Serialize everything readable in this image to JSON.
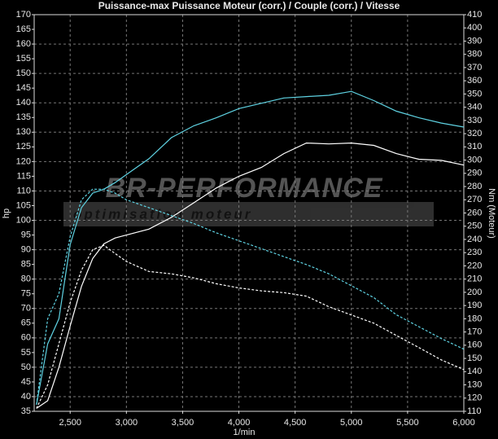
{
  "chart_data": {
    "type": "line",
    "title": "Puissance-max Puissance Moteur (corr.) / Couple (corr.) / Vitesse",
    "xlabel": "1/min",
    "ylabel": "hp",
    "y2label": "Nm (Moteur)",
    "x": [
      2200,
      2300,
      2400,
      2500,
      2600,
      2700,
      2800,
      2900,
      3000,
      3200,
      3400,
      3600,
      3800,
      4000,
      4200,
      4400,
      4600,
      4800,
      5000,
      5200,
      5400,
      5600,
      5800,
      6000
    ],
    "series": [
      {
        "color": "#ffffff",
        "line_style": "solid",
        "axis": "y",
        "values": [
          36,
          38.6,
          50,
          64,
          77.5,
          87,
          92,
          94,
          95,
          97,
          101,
          106,
          111,
          115,
          118,
          122.7,
          126.3,
          126,
          126.3,
          125.5,
          122.7,
          120.8,
          120.4,
          118.8
        ]
      },
      {
        "color": "#5fd3e3",
        "line_style": "solid",
        "axis": "y2",
        "values": [
          115,
          161,
          180,
          236,
          264,
          275,
          278,
          283,
          289,
          301,
          317,
          326,
          332,
          339,
          343,
          347,
          348,
          349,
          352,
          345,
          337,
          332,
          328,
          325
        ]
      },
      {
        "color": "#ffffff",
        "line_style": "dashed",
        "axis": "y",
        "values": [
          36,
          44,
          58,
          72,
          83,
          90,
          91.5,
          88.7,
          86,
          82.6,
          81.8,
          80.4,
          78.4,
          77,
          76,
          75.4,
          74.2,
          70.6,
          67.8,
          65,
          60.8,
          56.7,
          52.5,
          49.2
        ]
      },
      {
        "color": "#5fd3e3",
        "line_style": "dashed",
        "axis": "y2",
        "values": [
          115,
          180,
          199,
          242,
          270,
          278,
          278,
          275,
          270,
          264,
          258,
          252,
          245,
          239,
          233,
          227,
          221,
          214,
          205,
          196,
          183,
          174,
          165,
          157
        ]
      }
    ],
    "xlim": [
      2180,
      6000
    ],
    "xticks": [
      {
        "value": 2500,
        "label": "2,500"
      },
      {
        "value": 3000,
        "label": "3,000"
      },
      {
        "value": 3500,
        "label": "3,500"
      },
      {
        "value": 4000,
        "label": "4,000"
      },
      {
        "value": 4500,
        "label": "4,500"
      },
      {
        "value": 5000,
        "label": "5,000"
      },
      {
        "value": 5500,
        "label": "5,500"
      },
      {
        "value": 6000,
        "label": "6,000"
      }
    ],
    "ylim": [
      35,
      170
    ],
    "yticks": [
      35,
      40,
      45,
      50,
      55,
      60,
      65,
      70,
      75,
      80,
      85,
      90,
      95,
      100,
      105,
      110,
      115,
      120,
      125,
      130,
      135,
      140,
      145,
      150,
      155,
      160,
      165,
      170
    ],
    "y2lim": [
      110,
      410
    ],
    "y2ticks": [
      110,
      120,
      130,
      140,
      150,
      160,
      170,
      180,
      190,
      200,
      210,
      220,
      230,
      240,
      250,
      260,
      270,
      280,
      290,
      300,
      310,
      320,
      330,
      340,
      350,
      360,
      370,
      380,
      390,
      400,
      410
    ],
    "grid": true
  },
  "watermark": {
    "brand": "BR-PERFORMANCE",
    "tagline": "optimisation moteur"
  }
}
